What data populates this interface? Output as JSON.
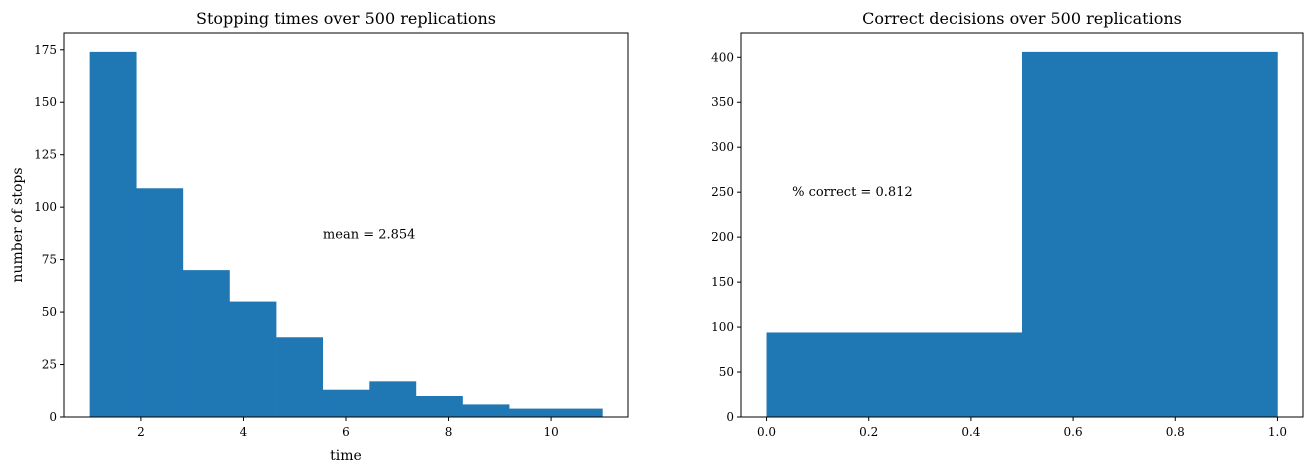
{
  "chart_data": [
    {
      "type": "bar",
      "subtype": "histogram",
      "title": "Stopping times over 500 replications",
      "xlabel": "time",
      "ylabel": "number of stops",
      "xlim": [
        0.5,
        11.5
      ],
      "ylim": [
        0,
        183
      ],
      "xticks": [
        2,
        4,
        6,
        8,
        10
      ],
      "yticks": [
        0,
        25,
        50,
        75,
        100,
        125,
        150,
        175
      ],
      "bin_edges": [
        1,
        1.9091,
        2.8182,
        3.7273,
        4.6364,
        5.5455,
        6.4545,
        7.3636,
        8.2727,
        9.1818,
        10.0909,
        11
      ],
      "values": [
        174,
        109,
        70,
        55,
        38,
        13,
        17,
        10,
        6,
        4,
        4
      ],
      "bar_color": "#1f77b4",
      "annotation": {
        "text": "mean = 2.854",
        "x": 5.55,
        "y": 87
      },
      "grid": false,
      "legend": "none"
    },
    {
      "type": "bar",
      "subtype": "histogram",
      "title": "Correct decisions over 500 replications",
      "xlabel": "",
      "ylabel": "",
      "xlim": [
        -0.05,
        1.05
      ],
      "ylim": [
        0,
        427
      ],
      "xticks": [
        "0.0",
        "0.2",
        "0.4",
        "0.6",
        "0.8",
        "1.0"
      ],
      "yticks": [
        0,
        50,
        100,
        150,
        200,
        250,
        300,
        350,
        400
      ],
      "bin_edges": [
        0,
        0.5,
        1
      ],
      "values": [
        94,
        406
      ],
      "bar_color": "#1f77b4",
      "annotation": {
        "text": "% correct = 0.812",
        "x": 0.05,
        "y": 250
      },
      "grid": false,
      "legend": "none"
    }
  ]
}
